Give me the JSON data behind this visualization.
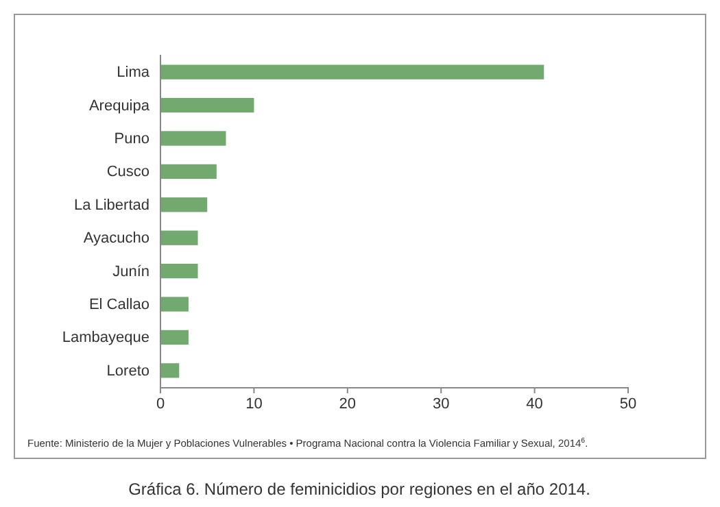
{
  "chart_data": {
    "type": "bar",
    "orientation": "horizontal",
    "title": "Gráfica 6. Número de feminicidios por regiones en el año 2014.",
    "categories": [
      "Lima",
      "Arequipa",
      "Puno",
      "Cusco",
      "La Libertad",
      "Ayacucho",
      "Junín",
      "El Callao",
      "Lambayeque",
      "Loreto"
    ],
    "values": [
      41,
      10,
      7,
      6,
      5,
      4,
      4,
      3,
      3,
      2
    ],
    "color": "#72a96f",
    "xlim": [
      0,
      50
    ],
    "xticks": [
      0,
      10,
      20,
      30,
      40,
      50
    ],
    "grid": false,
    "annotations": [
      "Fuente: Ministerio de la Mujer y Poblaciones Vulnerables • Programa Nacional contra la Violencia Familiar y Sexual, 2014$^{6}$."
    ]
  }
}
